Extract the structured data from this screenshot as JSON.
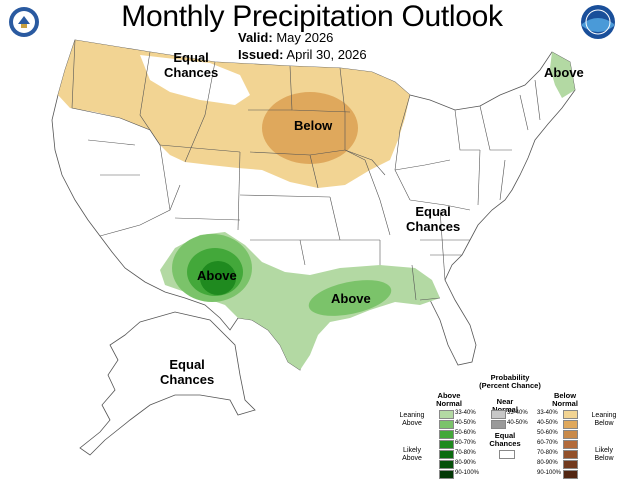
{
  "title": "Monthly Precipitation Outlook",
  "valid_label": "Valid:",
  "valid_value": "May 2026",
  "issued_label": "Issued:",
  "issued_value": "April 30, 2026",
  "map_labels": {
    "equal_nw_1": "Equal",
    "equal_nw_2": "Chances",
    "below": "Below",
    "above_ne": "Above",
    "equal_east_1": "Equal",
    "equal_east_2": "Chances",
    "above_sw": "Above",
    "above_south": "Above",
    "equal_ak_1": "Equal",
    "equal_ak_2": "Chances"
  },
  "logos": [
    "doc-seal",
    "noaa"
  ],
  "legend": {
    "title_1": "Probability",
    "title_2": "(Percent Chance)",
    "above_head_1": "Above",
    "above_head_2": "Normal",
    "near_head_1": "Near",
    "near_head_2": "Normal",
    "below_head_1": "Below",
    "below_head_2": "Normal",
    "leaning_above_1": "Leaning",
    "leaning_above_2": "Above",
    "likely_above_1": "Likely",
    "likely_above_2": "Above",
    "leaning_below_1": "Leaning",
    "leaning_below_2": "Below",
    "likely_below_1": "Likely",
    "likely_below_2": "Below",
    "equal_1": "Equal",
    "equal_2": "Chances",
    "above_bins": [
      "33-40%",
      "40-50%",
      "50-60%",
      "60-70%",
      "70-80%",
      "80-90%",
      "90-100%"
    ],
    "near_bins": [
      "33-40%",
      "40-50%"
    ],
    "below_bins": [
      "33-40%",
      "40-50%",
      "50-60%",
      "60-70%",
      "70-80%",
      "80-90%",
      "90-100%"
    ],
    "above_colors": [
      "#b3d9a3",
      "#7bc36a",
      "#43a83a",
      "#1f8a1f",
      "#0b6b10",
      "#05500a",
      "#033806"
    ],
    "near_colors": [
      "#c8c8c8",
      "#9a9a9a"
    ],
    "below_colors": [
      "#f2d493",
      "#dfa85c",
      "#c98a4a",
      "#b26a3a",
      "#92502a",
      "#723a1e",
      "#522612"
    ]
  }
}
